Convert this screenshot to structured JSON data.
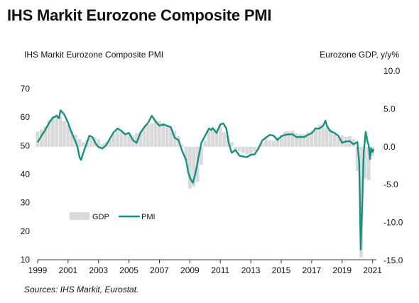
{
  "header": {
    "title": "IHS Markit Eurozone Composite PMI",
    "left_axis_title": "IHS Markit Eurozone Composite  PMI",
    "right_axis_title": "Eurozone GDP, y/y%",
    "source": "Sources: IHS Markit, Eurostat."
  },
  "colors": {
    "pmi": "#17907f",
    "gdp": "#d9d9d9",
    "axis": "#333333"
  },
  "chart_data": {
    "type": "line",
    "title": "IHS Markit Eurozone Composite PMI",
    "left_axis": {
      "ylim": [
        10,
        70
      ],
      "ticks": [
        10,
        20,
        30,
        40,
        50,
        60,
        70
      ]
    },
    "right_axis": {
      "ylim": [
        -15,
        10
      ],
      "ticks": [
        "10.0",
        "5.0",
        "0.0",
        "-5.0",
        "-10.0",
        "-15.0"
      ]
    },
    "x_ticks": [
      "1999",
      "2001",
      "2003",
      "2005",
      "2007",
      "2009",
      "2011",
      "2013",
      "2015",
      "2017",
      "2019",
      "2021"
    ],
    "xlim": [
      1999,
      2021.25
    ],
    "grid": false,
    "legend": {
      "position": "lower-left",
      "entries": [
        "GDP",
        "PMI"
      ]
    },
    "series": [
      {
        "name": "PMI",
        "axis": "left",
        "style": "line",
        "points": [
          [
            1999.0,
            51.2
          ],
          [
            1999.25,
            53.5
          ],
          [
            1999.5,
            55.5
          ],
          [
            1999.75,
            58.0
          ],
          [
            2000.0,
            59.8
          ],
          [
            2000.25,
            60.5
          ],
          [
            2000.4,
            59.6
          ],
          [
            2000.5,
            62.4
          ],
          [
            2000.75,
            61.0
          ],
          [
            2001.0,
            58.0
          ],
          [
            2001.2,
            55.0
          ],
          [
            2001.4,
            52.5
          ],
          [
            2001.6,
            50.0
          ],
          [
            2001.75,
            46.0
          ],
          [
            2001.85,
            45.0
          ],
          [
            2002.0,
            47.5
          ],
          [
            2002.2,
            50.5
          ],
          [
            2002.4,
            53.5
          ],
          [
            2002.6,
            53.0
          ],
          [
            2002.8,
            50.8
          ],
          [
            2003.0,
            49.5
          ],
          [
            2003.25,
            49.0
          ],
          [
            2003.5,
            50.2
          ],
          [
            2003.75,
            52.5
          ],
          [
            2004.0,
            54.8
          ],
          [
            2004.25,
            56.0
          ],
          [
            2004.5,
            55.2
          ],
          [
            2004.75,
            54.0
          ],
          [
            2005.0,
            54.5
          ],
          [
            2005.25,
            52.0
          ],
          [
            2005.5,
            51.0
          ],
          [
            2005.75,
            54.5
          ],
          [
            2006.0,
            56.5
          ],
          [
            2006.25,
            58.0
          ],
          [
            2006.5,
            60.5
          ],
          [
            2006.75,
            58.5
          ],
          [
            2007.0,
            57.0
          ],
          [
            2007.25,
            57.5
          ],
          [
            2007.5,
            57.0
          ],
          [
            2007.75,
            56.5
          ],
          [
            2008.0,
            52.8
          ],
          [
            2008.25,
            52.0
          ],
          [
            2008.5,
            48.0
          ],
          [
            2008.75,
            45.0
          ],
          [
            2008.9,
            40.5
          ],
          [
            2009.05,
            38.2
          ],
          [
            2009.2,
            37.0
          ],
          [
            2009.35,
            40.0
          ],
          [
            2009.5,
            44.0
          ],
          [
            2009.75,
            51.0
          ],
          [
            2010.0,
            53.5
          ],
          [
            2010.25,
            56.0
          ],
          [
            2010.4,
            55.5
          ],
          [
            2010.5,
            56.2
          ],
          [
            2010.75,
            54.5
          ],
          [
            2011.0,
            57.5
          ],
          [
            2011.2,
            57.8
          ],
          [
            2011.4,
            56.0
          ],
          [
            2011.55,
            51.0
          ],
          [
            2011.75,
            47.5
          ],
          [
            2012.0,
            48.5
          ],
          [
            2012.25,
            46.5
          ],
          [
            2012.5,
            46.2
          ],
          [
            2012.75,
            46.0
          ],
          [
            2013.0,
            46.8
          ],
          [
            2013.25,
            47.0
          ],
          [
            2013.5,
            49.0
          ],
          [
            2013.75,
            51.8
          ],
          [
            2014.0,
            52.9
          ],
          [
            2014.25,
            53.8
          ],
          [
            2014.5,
            53.5
          ],
          [
            2014.75,
            52.0
          ],
          [
            2015.0,
            53.3
          ],
          [
            2015.25,
            53.8
          ],
          [
            2015.5,
            54.0
          ],
          [
            2015.75,
            54.0
          ],
          [
            2016.0,
            53.0
          ],
          [
            2016.25,
            53.1
          ],
          [
            2016.5,
            53.0
          ],
          [
            2016.75,
            53.8
          ],
          [
            2017.0,
            54.4
          ],
          [
            2017.25,
            56.0
          ],
          [
            2017.5,
            56.0
          ],
          [
            2017.75,
            57.0
          ],
          [
            2017.9,
            58.8
          ],
          [
            2018.0,
            57.0
          ],
          [
            2018.2,
            55.2
          ],
          [
            2018.5,
            54.5
          ],
          [
            2018.75,
            53.5
          ],
          [
            2019.0,
            51.0
          ],
          [
            2019.25,
            51.5
          ],
          [
            2019.5,
            51.6
          ],
          [
            2019.75,
            50.5
          ],
          [
            2020.0,
            51.3
          ],
          [
            2020.12,
            44.0
          ],
          [
            2020.22,
            13.6
          ],
          [
            2020.33,
            31.0
          ],
          [
            2020.42,
            48.0
          ],
          [
            2020.55,
            54.9
          ],
          [
            2020.65,
            51.8
          ],
          [
            2020.75,
            50.0
          ],
          [
            2020.83,
            45.3
          ],
          [
            2020.9,
            49.1
          ],
          [
            2021.0,
            47.8
          ],
          [
            2021.07,
            48.8
          ]
        ]
      },
      {
        "name": "GDP",
        "axis": "right",
        "style": "bar",
        "points": [
          [
            1999.0,
            2.0
          ],
          [
            1999.25,
            2.3
          ],
          [
            1999.5,
            2.7
          ],
          [
            1999.75,
            3.5
          ],
          [
            2000.0,
            4.0
          ],
          [
            2000.25,
            4.3
          ],
          [
            2000.5,
            4.0
          ],
          [
            2000.75,
            3.4
          ],
          [
            2001.0,
            2.9
          ],
          [
            2001.25,
            2.1
          ],
          [
            2001.5,
            1.6
          ],
          [
            2001.75,
            1.0
          ],
          [
            2002.0,
            0.6
          ],
          [
            2002.25,
            0.9
          ],
          [
            2002.5,
            1.1
          ],
          [
            2002.75,
            1.3
          ],
          [
            2003.0,
            1.0
          ],
          [
            2003.25,
            0.4
          ],
          [
            2003.5,
            0.6
          ],
          [
            2003.75,
            1.0
          ],
          [
            2004.0,
            1.7
          ],
          [
            2004.25,
            2.1
          ],
          [
            2004.5,
            2.0
          ],
          [
            2004.75,
            1.8
          ],
          [
            2005.0,
            1.6
          ],
          [
            2005.25,
            1.5
          ],
          [
            2005.5,
            1.8
          ],
          [
            2005.75,
            2.0
          ],
          [
            2006.0,
            2.5
          ],
          [
            2006.25,
            2.9
          ],
          [
            2006.5,
            3.1
          ],
          [
            2006.75,
            3.6
          ],
          [
            2007.0,
            3.4
          ],
          [
            2007.25,
            3.1
          ],
          [
            2007.5,
            2.9
          ],
          [
            2007.75,
            2.4
          ],
          [
            2008.0,
            2.1
          ],
          [
            2008.25,
            1.4
          ],
          [
            2008.5,
            0.3
          ],
          [
            2008.75,
            -1.8
          ],
          [
            2009.0,
            -5.5
          ],
          [
            2009.25,
            -5.3
          ],
          [
            2009.5,
            -4.6
          ],
          [
            2009.75,
            -2.4
          ],
          [
            2010.0,
            0.8
          ],
          [
            2010.25,
            2.1
          ],
          [
            2010.5,
            2.4
          ],
          [
            2010.75,
            2.2
          ],
          [
            2011.0,
            2.7
          ],
          [
            2011.25,
            1.9
          ],
          [
            2011.5,
            1.5
          ],
          [
            2011.75,
            0.6
          ],
          [
            2012.0,
            -0.4
          ],
          [
            2012.25,
            -0.6
          ],
          [
            2012.5,
            -0.8
          ],
          [
            2012.75,
            -1.0
          ],
          [
            2013.0,
            -1.1
          ],
          [
            2013.25,
            -0.6
          ],
          [
            2013.5,
            -0.2
          ],
          [
            2013.75,
            0.5
          ],
          [
            2014.0,
            1.2
          ],
          [
            2014.25,
            0.9
          ],
          [
            2014.5,
            0.8
          ],
          [
            2014.75,
            1.3
          ],
          [
            2015.0,
            1.6
          ],
          [
            2015.25,
            2.0
          ],
          [
            2015.5,
            2.0
          ],
          [
            2015.75,
            2.1
          ],
          [
            2016.0,
            1.8
          ],
          [
            2016.25,
            1.7
          ],
          [
            2016.5,
            1.7
          ],
          [
            2016.75,
            1.9
          ],
          [
            2017.0,
            2.1
          ],
          [
            2017.25,
            2.6
          ],
          [
            2017.5,
            2.9
          ],
          [
            2017.75,
            3.0
          ],
          [
            2018.0,
            2.6
          ],
          [
            2018.25,
            2.3
          ],
          [
            2018.5,
            1.7
          ],
          [
            2018.75,
            1.3
          ],
          [
            2019.0,
            1.5
          ],
          [
            2019.25,
            1.3
          ],
          [
            2019.5,
            1.4
          ],
          [
            2019.75,
            1.0
          ],
          [
            2020.0,
            -3.2
          ],
          [
            2020.25,
            -14.6
          ],
          [
            2020.5,
            -4.2
          ],
          [
            2020.75,
            -4.4
          ],
          [
            2021.0,
            -1.2
          ]
        ]
      }
    ]
  }
}
